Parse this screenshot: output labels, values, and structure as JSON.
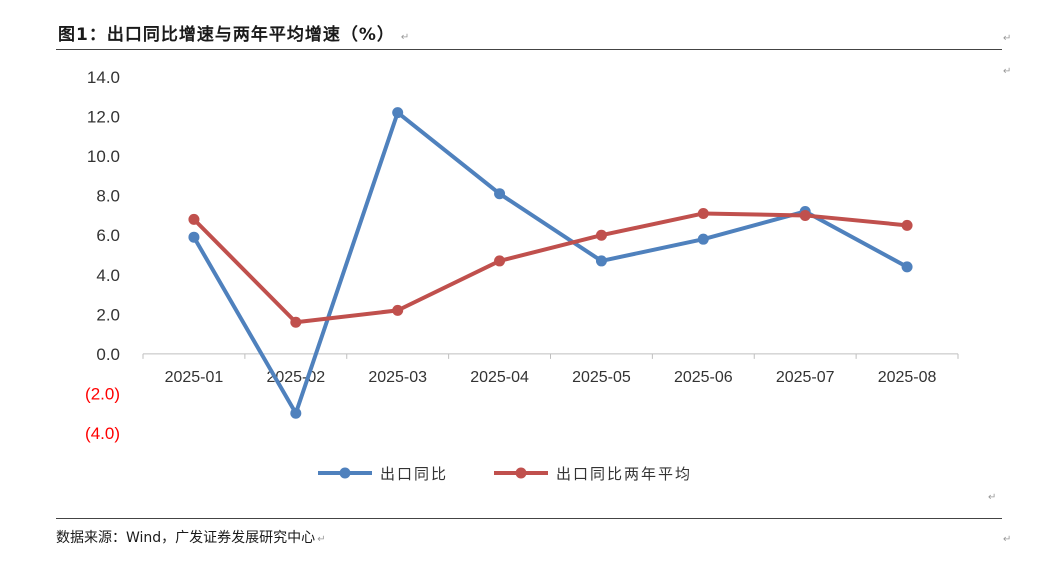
{
  "figure": {
    "title": "图1：出口同比增速与两年平均增速（%）",
    "source": "数据来源：Wind，广发证券发展研究中心"
  },
  "chart_data": {
    "type": "line",
    "categories": [
      "2025-01",
      "2025-02",
      "2025-03",
      "2025-04",
      "2025-05",
      "2025-06",
      "2025-07",
      "2025-08"
    ],
    "series": [
      {
        "name": "出口同比",
        "color": "#4F81BD",
        "values": [
          5.9,
          -3.0,
          12.2,
          8.1,
          4.7,
          5.8,
          7.2,
          4.4
        ]
      },
      {
        "name": "出口同比两年平均",
        "color": "#C0504D",
        "values": [
          6.8,
          1.6,
          2.2,
          4.7,
          6.0,
          7.1,
          7.0,
          6.5
        ]
      }
    ],
    "y_ticks": [
      14,
      12,
      10,
      8,
      6,
      4,
      2,
      0,
      -2,
      -4
    ],
    "y_tick_labels": [
      "14.0",
      "12.0",
      "10.0",
      "8.0",
      "6.0",
      "4.0",
      "2.0",
      "0.0",
      "(2.0)",
      "(4.0)"
    ],
    "negative_label_color": "#FF0000",
    "ylim": [
      -4,
      14
    ],
    "grid": false,
    "legend_position": "bottom-center"
  }
}
